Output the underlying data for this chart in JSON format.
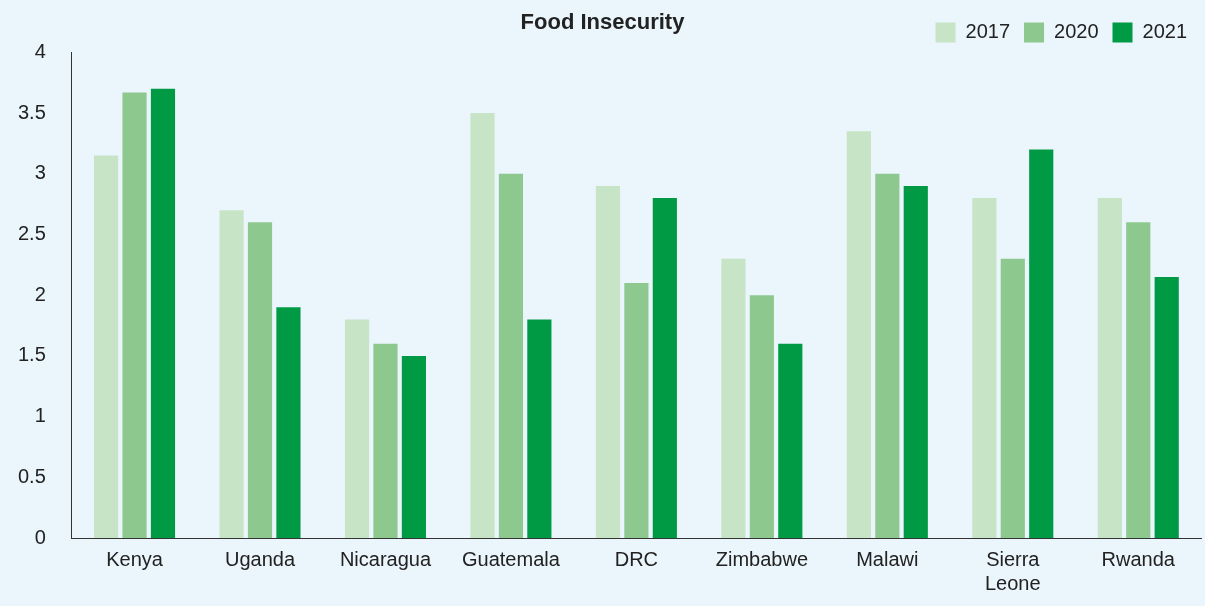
{
  "chart_data": {
    "type": "bar",
    "title": "Food Insecurity",
    "categories": [
      "Kenya",
      "Uganda",
      "Nicaragua",
      "Guatemala",
      "DRC",
      "Zimbabwe",
      "Malawi",
      "Sierra Leone",
      "Rwanda"
    ],
    "series": [
      {
        "name": "2017",
        "color": "#c8e4c6",
        "values": [
          3.15,
          2.7,
          1.8,
          3.5,
          2.9,
          2.3,
          3.35,
          2.8,
          2.8
        ]
      },
      {
        "name": "2020",
        "color": "#8dc98f",
        "values": [
          3.67,
          2.6,
          1.6,
          3,
          2.1,
          2,
          3,
          2.3,
          2.6
        ]
      },
      {
        "name": "2021",
        "color": "#009a44",
        "values": [
          3.7,
          1.9,
          1.5,
          1.8,
          2.8,
          1.6,
          2.9,
          3.2,
          2.15
        ]
      }
    ],
    "ylim": [
      0,
      4
    ],
    "yticks": [
      0,
      0.5,
      1,
      1.5,
      2,
      2.5,
      3,
      3.5,
      4
    ],
    "grid": false,
    "legend": "top right"
  }
}
